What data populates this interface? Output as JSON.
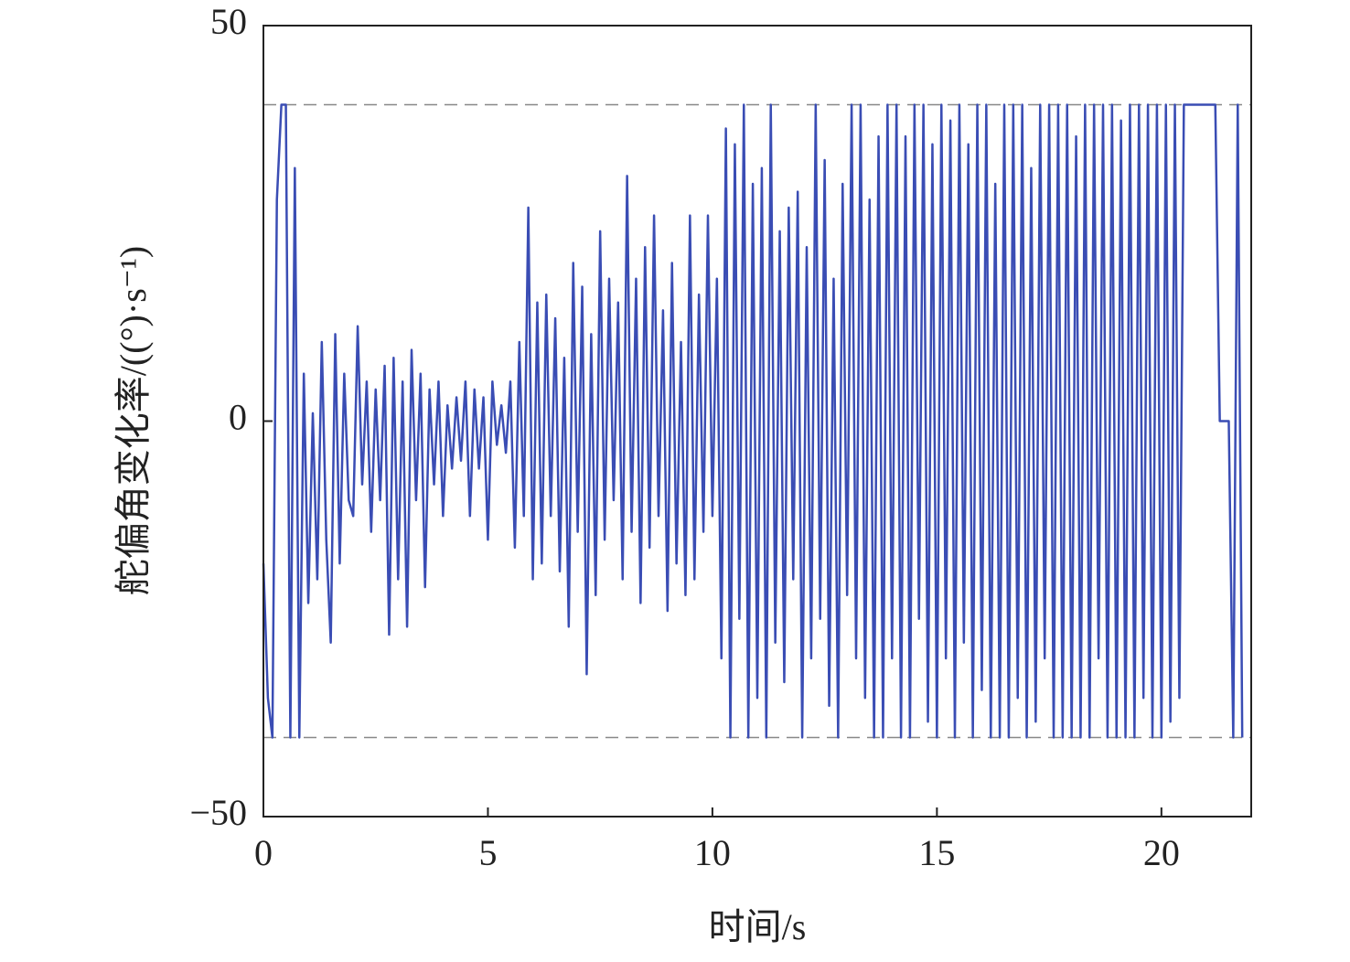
{
  "chart_data": {
    "type": "line",
    "xlabel": "时间/s",
    "ylabel": "舵偏角变化率/((°)·s⁻¹)",
    "color": "#3a4db4",
    "xlim": [
      0,
      22
    ],
    "ylim": [
      -50,
      50
    ],
    "xticks": [
      0,
      5,
      10,
      15,
      20
    ],
    "yticks": [
      {
        "value": -50,
        "label": "−50"
      },
      0,
      50
    ],
    "reference_lines": [
      40,
      -40
    ],
    "x": [
      0,
      0.1,
      0.2,
      0.3,
      0.4,
      0.5,
      0.6,
      0.7,
      0.8,
      0.9,
      1,
      1.1,
      1.2,
      1.3,
      1.4,
      1.5,
      1.6,
      1.7,
      1.8,
      1.9,
      2,
      2.1,
      2.2,
      2.3,
      2.4,
      2.5,
      2.6,
      2.7,
      2.8,
      2.9,
      3,
      3.1,
      3.2,
      3.3,
      3.4,
      3.5,
      3.6,
      3.7,
      3.8,
      3.9,
      4,
      4.1,
      4.2,
      4.3,
      4.4,
      4.5,
      4.6,
      4.7,
      4.8,
      4.9,
      5,
      5.1,
      5.2,
      5.3,
      5.4,
      5.5,
      5.6,
      5.7,
      5.8,
      5.9,
      6,
      6.1,
      6.2,
      6.3,
      6.4,
      6.5,
      6.6,
      6.7,
      6.8,
      6.9,
      7,
      7.1,
      7.2,
      7.3,
      7.4,
      7.5,
      7.6,
      7.7,
      7.8,
      7.9,
      8,
      8.1,
      8.2,
      8.3,
      8.4,
      8.5,
      8.6,
      8.7,
      8.8,
      8.9,
      9,
      9.1,
      9.2,
      9.3,
      9.4,
      9.5,
      9.6,
      9.7,
      9.8,
      9.9,
      10,
      10.1,
      10.2,
      10.3,
      10.4,
      10.5,
      10.6,
      10.7,
      10.8,
      10.9,
      11,
      11.1,
      11.2,
      11.3,
      11.4,
      11.5,
      11.6,
      11.7,
      11.8,
      11.9,
      12,
      12.1,
      12.2,
      12.3,
      12.4,
      12.5,
      12.6,
      12.7,
      12.8,
      12.9,
      13,
      13.1,
      13.2,
      13.3,
      13.4,
      13.5,
      13.6,
      13.7,
      13.8,
      13.9,
      14,
      14.1,
      14.2,
      14.3,
      14.4,
      14.5,
      14.6,
      14.7,
      14.8,
      14.9,
      15,
      15.1,
      15.2,
      15.3,
      15.4,
      15.5,
      15.6,
      15.7,
      15.8,
      15.9,
      16,
      16.1,
      16.2,
      16.3,
      16.4,
      16.5,
      16.6,
      16.7,
      16.8,
      16.9,
      17,
      17.1,
      17.2,
      17.3,
      17.4,
      17.5,
      17.6,
      17.7,
      17.8,
      17.9,
      18,
      18.1,
      18.2,
      18.3,
      18.4,
      18.5,
      18.6,
      18.7,
      18.8,
      18.9,
      19,
      19.1,
      19.2,
      19.3,
      19.4,
      19.5,
      19.6,
      19.7,
      19.8,
      19.9,
      20,
      20.1,
      20.2,
      20.3,
      20.4,
      20.5,
      20.6,
      20.7,
      20.8,
      20.9,
      21,
      21.1,
      21.2,
      21.3,
      21.4,
      21.5,
      21.6,
      21.7,
      21.8
    ],
    "values": [
      -18,
      -35,
      -40,
      28,
      40,
      40,
      -40,
      32,
      -40,
      6,
      -23,
      1,
      -20,
      10,
      -15,
      -28,
      11,
      -18,
      6,
      -10,
      -12,
      12,
      -8,
      5,
      -14,
      4,
      -10,
      7,
      -27,
      8,
      -20,
      5,
      -26,
      9,
      -10,
      6,
      -21,
      4,
      -8,
      5,
      -12,
      2,
      -6,
      3,
      -5,
      5,
      -12,
      4,
      -6,
      3,
      -15,
      5,
      -3,
      2,
      -4,
      5,
      -16,
      10,
      -12,
      27,
      -20,
      15,
      -18,
      16,
      -12,
      13,
      -19,
      8,
      -26,
      20,
      -14,
      17,
      -32,
      11,
      -22,
      24,
      -15,
      18,
      -10,
      15,
      -20,
      31,
      -14,
      18,
      -23,
      22,
      -16,
      26,
      -12,
      14,
      -24,
      20,
      -18,
      10,
      -22,
      26,
      -20,
      16,
      -14,
      26,
      -12,
      18,
      -30,
      37,
      -40,
      35,
      -25,
      40,
      -40,
      30,
      -35,
      32,
      -40,
      40,
      -28,
      24,
      -33,
      27,
      -20,
      29,
      -40,
      22,
      -30,
      40,
      -25,
      33,
      -36,
      18,
      -40,
      30,
      -22,
      40,
      -30,
      40,
      -35,
      28,
      -40,
      36,
      -40,
      40,
      -30,
      40,
      -40,
      36,
      -40,
      40,
      -25,
      40,
      -38,
      35,
      -40,
      40,
      -30,
      38,
      -40,
      40,
      -28,
      35,
      -40,
      40,
      -34,
      40,
      -40,
      30,
      -40,
      40,
      -40,
      40,
      -35,
      40,
      -40,
      32,
      -38,
      40,
      -30,
      40,
      -40,
      40,
      -40,
      40,
      -40,
      36,
      -40,
      40,
      -40,
      40,
      -30,
      40,
      -40,
      40,
      -40,
      38,
      -40,
      40,
      -40,
      40,
      -35,
      40,
      -40,
      40,
      -40,
      40,
      -38,
      40,
      -35,
      40,
      40,
      40,
      40,
      40,
      40,
      40,
      40,
      0,
      0,
      0,
      -40,
      40,
      -40
    ]
  }
}
